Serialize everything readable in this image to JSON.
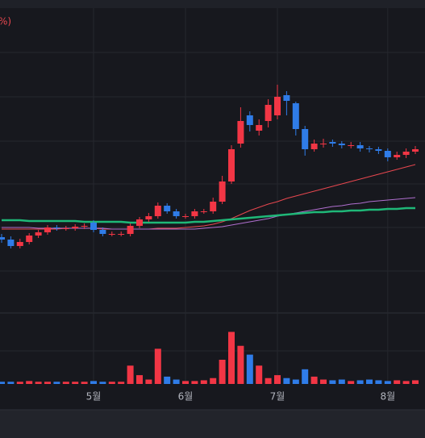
{
  "chart_data": {
    "type": "candlestick",
    "legend_text": "%)",
    "categories": [
      null,
      null,
      null,
      null,
      null,
      null,
      null,
      null,
      null,
      null,
      "5월",
      null,
      null,
      null,
      null,
      null,
      null,
      null,
      null,
      null,
      "6월",
      null,
      null,
      null,
      null,
      null,
      null,
      null,
      null,
      null,
      "7월",
      null,
      null,
      null,
      null,
      null,
      null,
      null,
      null,
      null,
      null,
      null,
      "8월",
      null,
      null,
      null
    ],
    "open": [
      94,
      91,
      83,
      88,
      96,
      100,
      106,
      105,
      105,
      107,
      112,
      103,
      98,
      98,
      98,
      108,
      116,
      120,
      133,
      126,
      120,
      120,
      126,
      126,
      138,
      163,
      210,
      245,
      226,
      238,
      245,
      270,
      260,
      228,
      203,
      210,
      212,
      210,
      208,
      208,
      204,
      203,
      201,
      193,
      196,
      200
    ],
    "high": [
      98,
      95,
      92,
      99,
      103,
      109,
      109,
      108,
      110,
      111,
      115,
      106,
      101,
      101,
      111,
      119,
      124,
      137,
      136,
      129,
      123,
      129,
      129,
      143,
      170,
      208,
      255,
      250,
      240,
      265,
      283,
      275,
      262,
      232,
      215,
      216,
      215,
      213,
      212,
      212,
      207,
      206,
      204,
      200,
      204,
      207
    ],
    "low": [
      87,
      80,
      80,
      85,
      93,
      97,
      102,
      102,
      102,
      104,
      100,
      95,
      95,
      95,
      95,
      105,
      113,
      117,
      123,
      117,
      117,
      117,
      123,
      123,
      135,
      160,
      205,
      225,
      220,
      230,
      240,
      245,
      220,
      195,
      200,
      205,
      206,
      204,
      204,
      200,
      199,
      197,
      188,
      190,
      192,
      197
    ],
    "close": [
      91,
      83,
      88,
      96,
      100,
      106,
      105,
      105,
      107,
      108,
      103,
      98,
      98,
      98,
      108,
      116,
      120,
      133,
      126,
      120,
      120,
      126,
      126,
      138,
      163,
      203,
      238,
      233,
      233,
      258,
      268,
      263,
      228,
      203,
      210,
      210,
      210,
      208,
      208,
      204,
      203,
      201,
      193,
      196,
      200,
      203
    ],
    "volume": [
      3,
      3,
      3,
      4,
      3,
      3,
      3,
      3,
      3,
      3,
      4,
      3,
      3,
      3,
      25,
      12,
      6,
      48,
      10,
      6,
      4,
      4,
      5,
      8,
      33,
      71,
      52,
      40,
      25,
      8,
      12,
      8,
      6,
      20,
      10,
      6,
      5,
      6,
      4,
      5,
      6,
      5,
      4,
      5,
      4,
      5
    ],
    "up_color": "#f23645",
    "down_color": "#2f7ce8",
    "ylim": [
      0,
      378
    ],
    "volume_ylim": [
      0,
      88
    ],
    "series": [
      {
        "color": "#e8474f",
        "values": [
          104,
          104,
          104,
          104,
          104,
          104,
          104,
          105,
          105,
          105,
          105,
          104,
          104,
          104,
          104,
          104,
          104,
          105,
          105,
          105,
          106,
          107,
          108,
          110,
          113,
          117,
          122,
          127,
          131,
          135,
          138,
          142,
          145,
          148,
          151,
          154,
          157,
          160,
          163,
          166,
          169,
          172,
          175,
          178,
          181,
          184
        ]
      },
      {
        "color": "#b06fcf",
        "values": [
          106,
          106,
          106,
          106,
          105,
          105,
          105,
          105,
          105,
          105,
          105,
          105,
          104,
          104,
          104,
          104,
          104,
          104,
          104,
          104,
          104,
          104,
          105,
          106,
          107,
          109,
          111,
          113,
          115,
          117,
          120,
          122,
          124,
          126,
          128,
          130,
          132,
          133,
          135,
          136,
          138,
          139,
          140,
          141,
          142,
          143
        ]
      },
      {
        "color": "#1fb878",
        "values": [
          115,
          115,
          115,
          114,
          114,
          114,
          114,
          114,
          114,
          113,
          113,
          113,
          113,
          113,
          112,
          112,
          112,
          112,
          112,
          112,
          112,
          113,
          113,
          114,
          115,
          116,
          117,
          118,
          119,
          120,
          121,
          122,
          123,
          124,
          125,
          125,
          126,
          126,
          127,
          127,
          128,
          128,
          129,
          129,
          130,
          130
        ]
      }
    ]
  }
}
